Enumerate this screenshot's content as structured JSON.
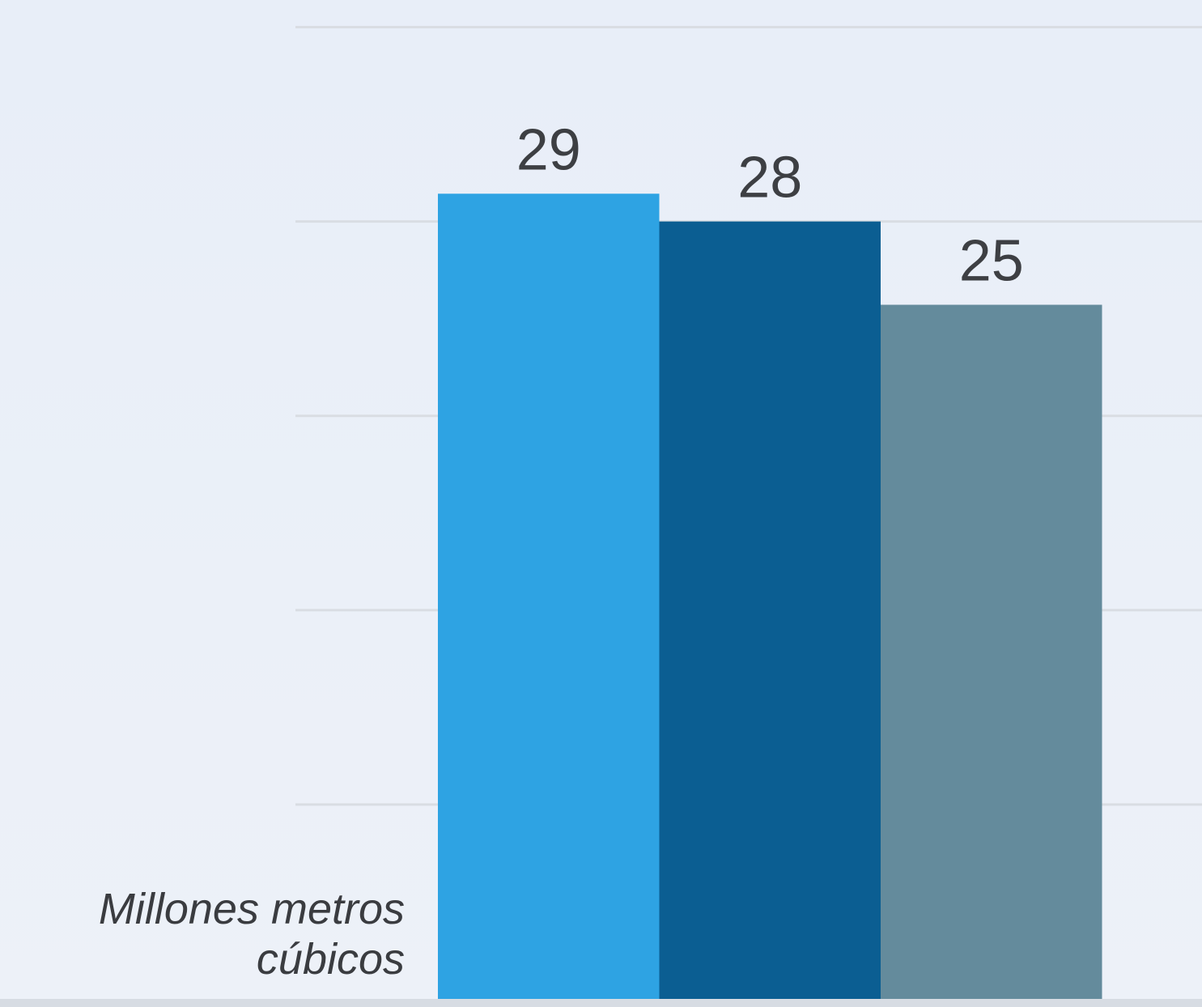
{
  "chart_data": {
    "type": "bar",
    "categories": [
      "",
      "",
      ""
    ],
    "values": [
      29,
      28,
      25
    ],
    "value_labels": [
      "29",
      "28",
      "25"
    ],
    "colors": [
      "#2ea3e3",
      "#0b5e92",
      "#648b9c"
    ],
    "title": "",
    "xlabel": "",
    "ylabel": "Millones metros cúbicos",
    "ylim": [
      0,
      35
    ],
    "grid": true
  }
}
